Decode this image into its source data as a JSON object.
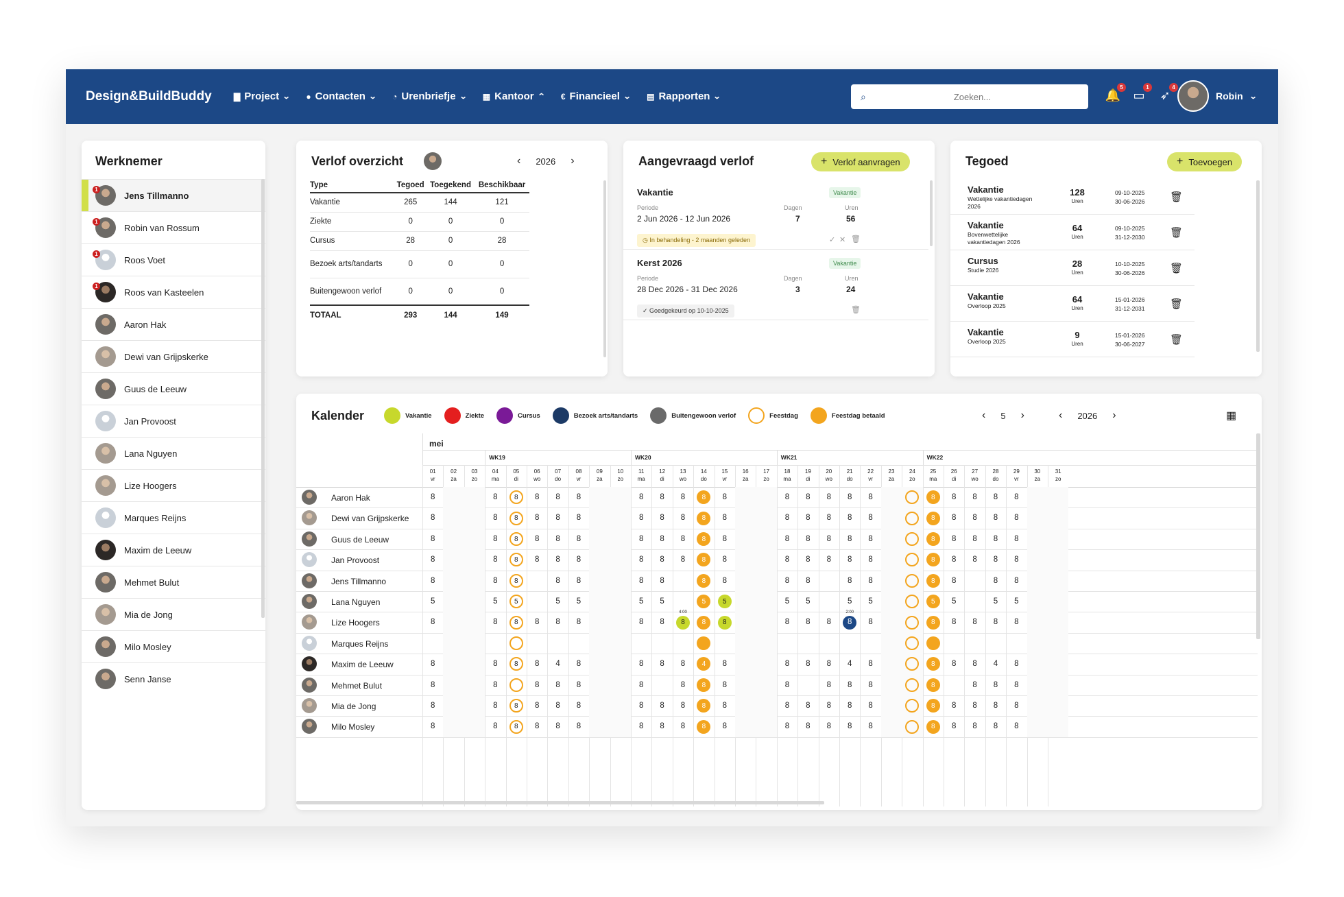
{
  "nav": {
    "brand": "Design&BuildBuddy",
    "menu": [
      {
        "icon": "folder-icon",
        "glyph": "▇",
        "label": "Project",
        "chevron": "⌄"
      },
      {
        "icon": "person-icon",
        "glyph": "●",
        "label": "Contacten",
        "chevron": "⌄"
      },
      {
        "icon": "clock-icon",
        "glyph": "◔",
        "label": "Urenbriefje",
        "chevron": "⌄"
      },
      {
        "icon": "building-icon",
        "glyph": "▦",
        "label": "Kantoor",
        "chevron": "⌃"
      },
      {
        "icon": "euro-icon",
        "glyph": "€",
        "label": "Financieel",
        "chevron": "⌄"
      },
      {
        "icon": "document-icon",
        "glyph": "▤",
        "label": "Rapporten",
        "chevron": "⌄"
      }
    ],
    "search_placeholder": "Zoeken...",
    "notif_badges": [
      "5",
      "1",
      "4"
    ],
    "user_name": "Robin"
  },
  "werknemer": {
    "title": "Werknemer",
    "employees": [
      {
        "name": "Jens Tillmanno",
        "badge": "1"
      },
      {
        "name": "Robin van Rossum",
        "badge": "1"
      },
      {
        "name": "Roos Voet",
        "badge": "1"
      },
      {
        "name": "Roos van Kasteelen",
        "badge": "1"
      },
      {
        "name": "Aaron Hak",
        "badge": ""
      },
      {
        "name": "Dewi van Grijpskerke",
        "badge": ""
      },
      {
        "name": "Guus de Leeuw",
        "badge": ""
      },
      {
        "name": "Jan Provoost",
        "badge": ""
      },
      {
        "name": "Lana Nguyen",
        "badge": ""
      },
      {
        "name": "Lize Hoogers",
        "badge": ""
      },
      {
        "name": "Marques Reijns",
        "badge": ""
      },
      {
        "name": "Maxim de Leeuw",
        "badge": ""
      },
      {
        "name": "Mehmet Bulut",
        "badge": ""
      },
      {
        "name": "Mia de Jong",
        "badge": ""
      },
      {
        "name": "Milo Mosley",
        "badge": ""
      },
      {
        "name": "Senn Janse",
        "badge": ""
      }
    ]
  },
  "verlof": {
    "title": "Verlof overzicht",
    "year": "2026",
    "headers": [
      "Type",
      "Tegoed",
      "Toegekend",
      "Beschikbaar"
    ],
    "rows": [
      {
        "type": "Vakantie",
        "tegoed": "265",
        "toegekend": "144",
        "beschikbaar": "121"
      },
      {
        "type": "Ziekte",
        "tegoed": "0",
        "toegekend": "0",
        "beschikbaar": "0"
      },
      {
        "type": "Cursus",
        "tegoed": "28",
        "toegekend": "0",
        "beschikbaar": "28"
      },
      {
        "type": "Bezoek arts/tandarts",
        "tegoed": "0",
        "toegekend": "0",
        "beschikbaar": "0"
      },
      {
        "type": "Buitengewoon verlof",
        "tegoed": "0",
        "toegekend": "0",
        "beschikbaar": "0"
      }
    ],
    "total": {
      "type": "TOTAAL",
      "tegoed": "293",
      "toegekend": "144",
      "beschikbaar": "149"
    }
  },
  "aangevraagd": {
    "title": "Aangevraagd verlof",
    "button": "Verlof aanvragen",
    "periode_label": "Periode",
    "dagen_label": "Dagen",
    "uren_label": "Uren",
    "requests": [
      {
        "title": "Vakantie",
        "tag": "Vakantie",
        "periode": "2 Jun 2026 - 12 Jun 2026",
        "dagen": "7",
        "uren": "56",
        "status": "In behandeling - 2 maanden geleden"
      },
      {
        "title": "Kerst 2026",
        "tag": "Vakantie",
        "periode": "28 Dec 2026 - 31 Dec 2026",
        "dagen": "3",
        "uren": "24",
        "status": "Goedgekeurd op 10-10-2025"
      }
    ]
  },
  "tegoed": {
    "title": "Tegoed",
    "button": "Toevoegen",
    "rows": [
      {
        "title": "Vakantie",
        "sub": "Wettelijke vakantiedagen 2026",
        "num": "128",
        "unit": "Uren",
        "from": "09-10-2025",
        "to": "30-06-2026"
      },
      {
        "title": "Vakantie",
        "sub": "Bovenwettelijke vakantiedagen 2026",
        "num": "64",
        "unit": "Uren",
        "from": "09-10-2025",
        "to": "31-12-2030"
      },
      {
        "title": "Cursus",
        "sub": "Studie 2026",
        "num": "28",
        "unit": "Uren",
        "from": "10-10-2025",
        "to": "30-06-2026"
      },
      {
        "title": "Vakantie",
        "sub": "Overloop 2025",
        "num": "64",
        "unit": "Uren",
        "from": "15-01-2026",
        "to": "31-12-2031"
      },
      {
        "title": "Vakantie",
        "sub": "Overloop 2025",
        "num": "9",
        "unit": "Uren",
        "from": "15-01-2026",
        "to": "30-06-2027"
      }
    ]
  },
  "kalender": {
    "title": "Kalender",
    "legend": [
      {
        "label": "Vakantie",
        "color": "#c7d82c",
        "style": "fill"
      },
      {
        "label": "Ziekte",
        "color": "#e41f1f",
        "style": "fill"
      },
      {
        "label": "Cursus",
        "color": "#7a1a97",
        "style": "fill"
      },
      {
        "label": "Bezoek arts/tandarts",
        "color": "#1c3a66",
        "style": "fill"
      },
      {
        "label": "Buitengewoon verlof",
        "color": "#6a6a6a",
        "style": "fill"
      },
      {
        "label": "Feestdag",
        "color": "#f3a51e",
        "style": "outline"
      },
      {
        "label": "Feestdag betaald",
        "color": "#f3a51e",
        "style": "fill"
      }
    ],
    "month_nav": "5",
    "year_nav": "2026",
    "month": "mei",
    "weeks": [
      "WK19",
      "WK20",
      "WK21",
      "WK22"
    ],
    "days": [
      [
        "01",
        "vr"
      ],
      [
        "02",
        "za"
      ],
      [
        "03",
        "zo"
      ],
      [
        "04",
        "ma"
      ],
      [
        "05",
        "di"
      ],
      [
        "06",
        "wo"
      ],
      [
        "07",
        "do"
      ],
      [
        "08",
        "vr"
      ],
      [
        "09",
        "za"
      ],
      [
        "10",
        "zo"
      ],
      [
        "11",
        "ma"
      ],
      [
        "12",
        "di"
      ],
      [
        "13",
        "wo"
      ],
      [
        "14",
        "do"
      ],
      [
        "15",
        "vr"
      ],
      [
        "16",
        "za"
      ],
      [
        "17",
        "zo"
      ],
      [
        "18",
        "ma"
      ],
      [
        "19",
        "di"
      ],
      [
        "20",
        "wo"
      ],
      [
        "21",
        "do"
      ],
      [
        "22",
        "vr"
      ],
      [
        "23",
        "za"
      ],
      [
        "24",
        "zo"
      ],
      [
        "25",
        "ma"
      ],
      [
        "26",
        "di"
      ],
      [
        "27",
        "wo"
      ],
      [
        "28",
        "do"
      ],
      [
        "29",
        "vr"
      ],
      [
        "30",
        "za"
      ],
      [
        "31",
        "zo"
      ]
    ],
    "mark_notes": [
      {
        "day": "13",
        "row": "Lize Hoogers",
        "text": "4:00"
      },
      {
        "day": "21",
        "row": "Lize Hoogers",
        "text": "2:00"
      }
    ],
    "rows": [
      {
        "name": "Aaron Hak",
        "cells": [
          "8",
          "",
          "",
          "8",
          "O8",
          "8",
          "8",
          "8",
          "",
          "",
          "8",
          "8",
          "8",
          "F8",
          "8",
          "",
          "",
          "8",
          "8",
          "8",
          "8",
          "8",
          "",
          "O",
          "F8",
          "8",
          "8",
          "8",
          "8",
          "",
          ""
        ]
      },
      {
        "name": "Dewi van Grijpskerke",
        "cells": [
          "8",
          "",
          "",
          "8",
          "O8",
          "8",
          "8",
          "8",
          "",
          "",
          "8",
          "8",
          "8",
          "F8",
          "8",
          "",
          "",
          "8",
          "8",
          "8",
          "8",
          "8",
          "",
          "O",
          "F8",
          "8",
          "8",
          "8",
          "8",
          "",
          ""
        ]
      },
      {
        "name": "Guus de Leeuw",
        "cells": [
          "8",
          "",
          "",
          "8",
          "O8",
          "8",
          "8",
          "8",
          "",
          "",
          "8",
          "8",
          "8",
          "F8",
          "8",
          "",
          "",
          "8",
          "8",
          "8",
          "8",
          "8",
          "",
          "O",
          "F8",
          "8",
          "8",
          "8",
          "8",
          "",
          ""
        ]
      },
      {
        "name": "Jan Provoost",
        "cells": [
          "8",
          "",
          "",
          "8",
          "O8",
          "8",
          "8",
          "8",
          "",
          "",
          "8",
          "8",
          "8",
          "F8",
          "8",
          "",
          "",
          "8",
          "8",
          "8",
          "8",
          "8",
          "",
          "O",
          "F8",
          "8",
          "8",
          "8",
          "8",
          "",
          ""
        ]
      },
      {
        "name": "Jens Tillmanno",
        "cells": [
          "8",
          "",
          "",
          "8",
          "O8",
          "",
          "8",
          "8",
          "",
          "",
          "8",
          "8",
          "",
          "F8",
          "8",
          "",
          "",
          "8",
          "8",
          "",
          "8",
          "8",
          "",
          "O",
          "F8",
          "8",
          "",
          "8",
          "8",
          "",
          ""
        ]
      },
      {
        "name": "Lana Nguyen",
        "cells": [
          "5",
          "",
          "",
          "5",
          "O5",
          "",
          "5",
          "5",
          "",
          "",
          "5",
          "5",
          "",
          "F5",
          "Y5",
          "",
          "",
          "5",
          "5",
          "",
          "5",
          "5",
          "",
          "O",
          "F5",
          "5",
          "",
          "5",
          "5",
          "",
          ""
        ]
      },
      {
        "name": "Lize Hoogers",
        "cells": [
          "8",
          "",
          "",
          "8",
          "O8",
          "8",
          "8",
          "8",
          "",
          "",
          "8",
          "8",
          "Y8",
          "F8",
          "Y8",
          "",
          "",
          "8",
          "8",
          "8",
          "N8",
          "8",
          "",
          "O",
          "F8",
          "8",
          "8",
          "8",
          "8",
          "",
          ""
        ]
      },
      {
        "name": "Marques Reijns",
        "cells": [
          "",
          "",
          "",
          "",
          "O",
          "",
          "",
          "",
          "",
          "",
          "",
          "",
          "",
          "F",
          "",
          "",
          "",
          "",
          "",
          "",
          "",
          "",
          "",
          "O",
          "F",
          "",
          "",
          "",
          "",
          "",
          ""
        ]
      },
      {
        "name": "Maxim de Leeuw",
        "cells": [
          "8",
          "",
          "",
          "8",
          "O8",
          "8",
          "4",
          "8",
          "",
          "",
          "8",
          "8",
          "8",
          "F4",
          "8",
          "",
          "",
          "8",
          "8",
          "8",
          "4",
          "8",
          "",
          "O",
          "F8",
          "8",
          "8",
          "4",
          "8",
          "",
          ""
        ]
      },
      {
        "name": "Mehmet Bulut",
        "cells": [
          "8",
          "",
          "",
          "8",
          "O",
          "8",
          "8",
          "8",
          "",
          "",
          "8",
          "",
          "8",
          "F8",
          "8",
          "",
          "",
          "8",
          "",
          "8",
          "8",
          "8",
          "",
          "O",
          "F8",
          "",
          "8",
          "8",
          "8",
          "",
          ""
        ]
      },
      {
        "name": "Mia de Jong",
        "cells": [
          "8",
          "",
          "",
          "8",
          "O8",
          "8",
          "8",
          "8",
          "",
          "",
          "8",
          "8",
          "8",
          "F8",
          "8",
          "",
          "",
          "8",
          "8",
          "8",
          "8",
          "8",
          "",
          "O",
          "F8",
          "8",
          "8",
          "8",
          "8",
          "",
          ""
        ]
      },
      {
        "name": "Milo Mosley",
        "cells": [
          "8",
          "",
          "",
          "8",
          "O8",
          "8",
          "8",
          "8",
          "",
          "",
          "8",
          "8",
          "8",
          "F8",
          "8",
          "",
          "",
          "8",
          "8",
          "8",
          "8",
          "8",
          "",
          "O",
          "F8",
          "8",
          "8",
          "8",
          "8",
          "",
          ""
        ]
      }
    ]
  }
}
